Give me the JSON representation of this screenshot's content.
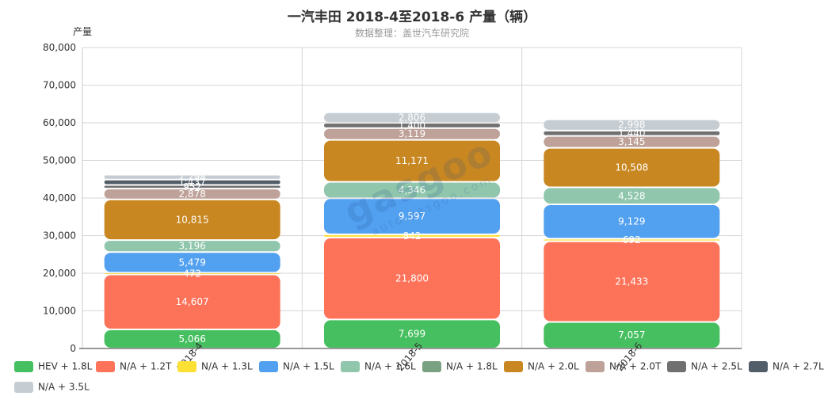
{
  "header": {
    "title": "一汽丰田 2018-4至2018-6 产量（辆）",
    "subtitle": "数据整理：盖世汽车研究院"
  },
  "watermark": {
    "brand": "gasgoo",
    "url": "auto.gasgoo.com"
  },
  "chart_data": {
    "type": "bar",
    "stacked": true,
    "title": "一汽丰田 2018-4至2018-6 产量（辆）",
    "subtitle": "数据整理：盖世汽车研究院",
    "ylabel": "产量",
    "xlabel": "",
    "ylim": [
      0,
      80000
    ],
    "yticks": [
      0,
      10000,
      20000,
      30000,
      40000,
      50000,
      60000,
      70000,
      80000
    ],
    "ytick_labels": [
      "0",
      "10,000",
      "20,000",
      "30,000",
      "40,000",
      "50,000",
      "60,000",
      "70,000",
      "80,000"
    ],
    "grid": true,
    "legend_position": "bottom",
    "categories": [
      "2018-4",
      "2018-5",
      "2018-6"
    ],
    "series": [
      {
        "name": "HEV + 1.8L",
        "color": "#45bf5f",
        "values": [
          5066,
          7699,
          7057
        ],
        "labels": [
          "5,066",
          "7,699",
          "7,057"
        ]
      },
      {
        "name": "N/A + 1.2T",
        "color": "#fd735a",
        "values": [
          14607,
          21800,
          21433
        ],
        "labels": [
          "14,607",
          "21,800",
          "21,433"
        ]
      },
      {
        "name": "N/A + 1.3L",
        "color": "#fde034",
        "values": [
          472,
          842,
          692
        ],
        "labels": [
          "472",
          "842",
          "692"
        ]
      },
      {
        "name": "N/A + 1.5L",
        "color": "#52a0f0",
        "values": [
          5479,
          9597,
          9129
        ],
        "labels": [
          "5,479",
          "9,597",
          "9,129"
        ]
      },
      {
        "name": "N/A + 1.6L",
        "color": "#8fc6ac",
        "values": [
          3196,
          4346,
          4528
        ],
        "labels": [
          "3,196",
          "4,346",
          "4,528"
        ]
      },
      {
        "name": "N/A + 1.8L",
        "color": "#7aa181",
        "values": [
          0,
          0,
          0
        ],
        "labels": [
          "",
          "",
          ""
        ]
      },
      {
        "name": "N/A + 2.0L",
        "color": "#c98721",
        "values": [
          10815,
          11171,
          10508
        ],
        "labels": [
          "10,815",
          "11,171",
          "10,508"
        ]
      },
      {
        "name": "N/A + 2.0T",
        "color": "#bea198",
        "values": [
          2878,
          3119,
          3145
        ],
        "labels": [
          "2,878",
          "3,119",
          "3,145"
        ]
      },
      {
        "name": "N/A + 2.5L",
        "color": "#707070",
        "values": [
          952,
          1400,
          1440
        ],
        "labels": [
          "952",
          "1,400",
          "1,440"
        ]
      },
      {
        "name": "N/A + 2.7L",
        "color": "#515e69",
        "values": [
          1437,
          0,
          0
        ],
        "labels": [
          "1,437",
          "",
          ""
        ]
      },
      {
        "name": "N/A + 3.5L",
        "color": "#c5cdd3",
        "values": [
          1298,
          2806,
          2998
        ],
        "labels": [
          "1,298",
          "2,806",
          "2,998"
        ]
      }
    ]
  }
}
